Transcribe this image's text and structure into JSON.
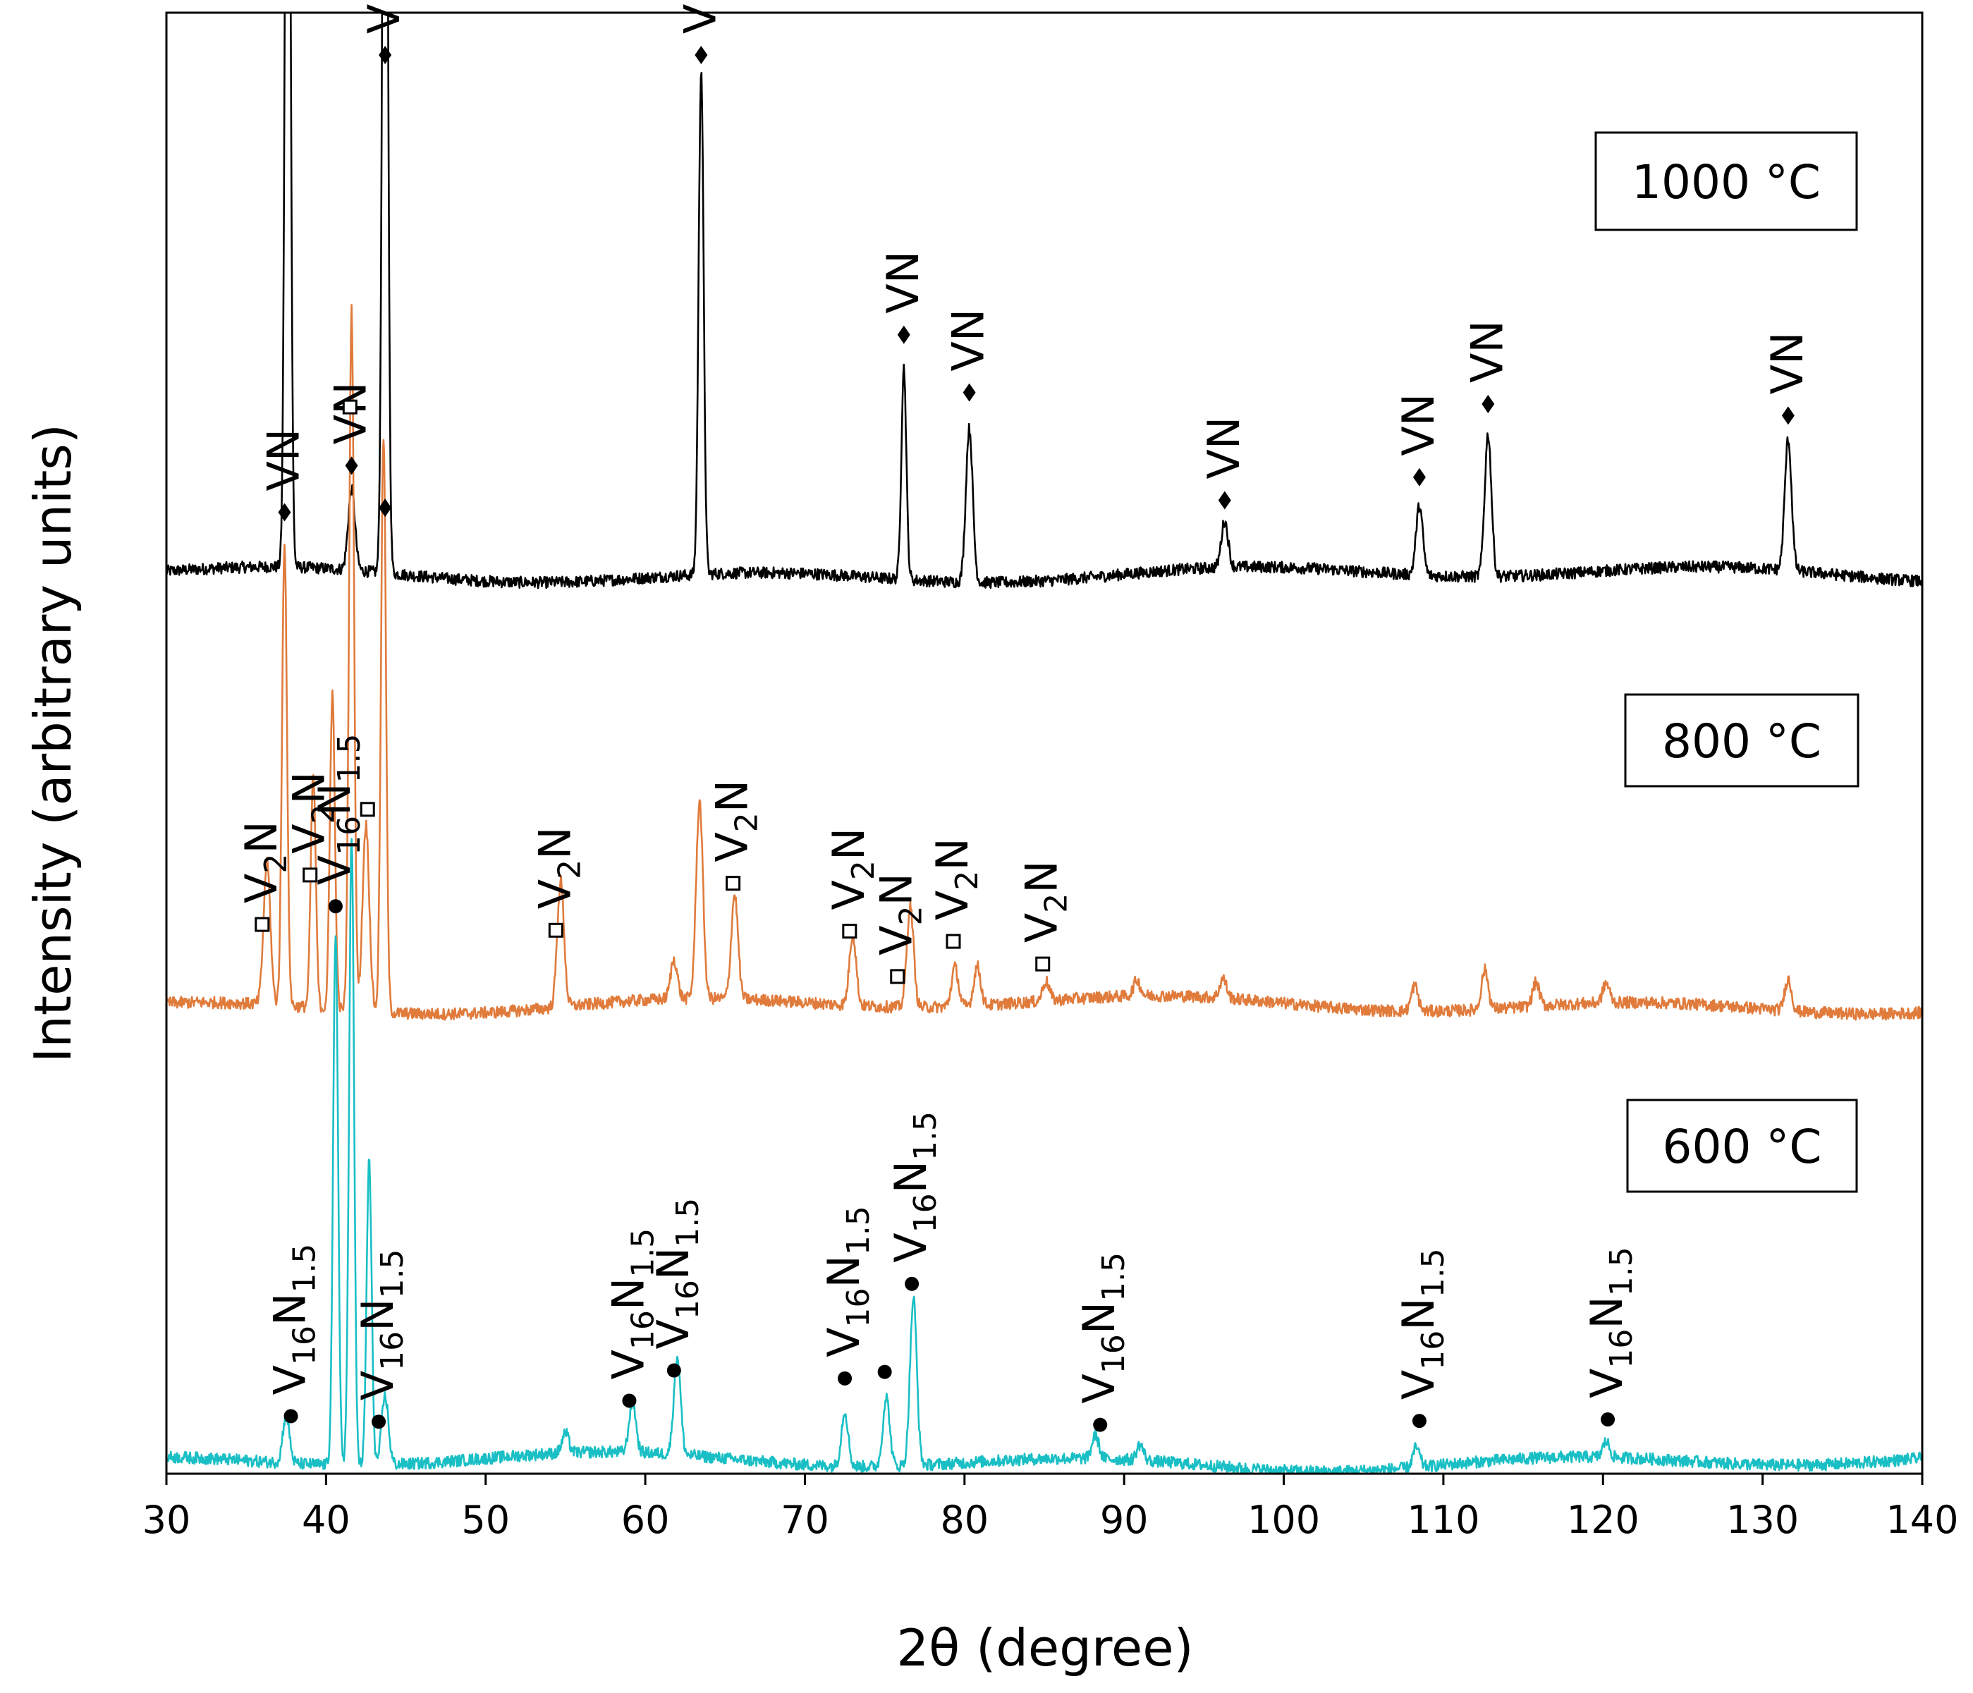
{
  "chart_data": {
    "type": "line",
    "title": "",
    "xlabel": "2θ (degree)",
    "ylabel": "Intensity (arbitrary units)",
    "xlim": [
      30,
      140
    ],
    "xticks": [
      30,
      40,
      50,
      60,
      70,
      80,
      90,
      100,
      110,
      120,
      130,
      140
    ],
    "y_ticks_shown": false,
    "legend_position": "none (temperature labels in boxes at right of each trace)",
    "series": [
      {
        "name": "1000 °C",
        "label": "1000 °C",
        "color": "#000000",
        "baseline_level": 0.235,
        "peaks": [
          [
            37.6,
            6.0
          ],
          [
            41.6,
            0.42
          ],
          [
            43.7,
            6.0
          ],
          [
            63.5,
            2.63
          ],
          [
            76.2,
            1.1
          ],
          [
            80.3,
            0.8
          ],
          [
            96.3,
            0.24
          ],
          [
            108.5,
            0.36
          ],
          [
            112.8,
            0.74
          ],
          [
            131.6,
            0.68
          ]
        ],
        "annotations": [
          {
            "x": 41.6,
            "marker": "diamond",
            "text": "VN"
          },
          {
            "x": 43.7,
            "marker": "diamond",
            "text": "VN"
          },
          {
            "x": 63.5,
            "marker": "diamond",
            "text": "VN"
          },
          {
            "x": 76.2,
            "marker": "diamond",
            "text": "VN"
          },
          {
            "x": 80.3,
            "marker": "diamond",
            "text": "VN"
          },
          {
            "x": 96.3,
            "marker": "diamond",
            "text": "VN"
          },
          {
            "x": 108.5,
            "marker": "diamond",
            "text": "VN"
          },
          {
            "x": 112.8,
            "marker": "diamond",
            "text": "VN"
          },
          {
            "x": 131.6,
            "marker": "diamond",
            "text": "VN"
          }
        ]
      },
      {
        "name": "800 °C",
        "label": "800 °C",
        "color": "#e07b3c",
        "baseline_level": 0.245,
        "peaks": [
          [
            36.3,
            0.72
          ],
          [
            37.4,
            2.36
          ],
          [
            39.2,
            1.18
          ],
          [
            40.4,
            1.61
          ],
          [
            41.6,
            3.56
          ],
          [
            42.5,
            0.95
          ],
          [
            43.6,
            2.93
          ],
          [
            54.7,
            0.64
          ],
          [
            61.8,
            0.2
          ],
          [
            63.4,
            1.0
          ],
          [
            65.6,
            0.53
          ],
          [
            73.0,
            0.36
          ],
          [
            76.6,
            0.51
          ],
          [
            79.4,
            0.2
          ],
          [
            80.8,
            0.2
          ],
          [
            85.1,
            0.1
          ],
          [
            90.8,
            0.08
          ],
          [
            96.2,
            0.1
          ],
          [
            108.2,
            0.13
          ],
          [
            112.6,
            0.2
          ],
          [
            115.8,
            0.12
          ],
          [
            120.2,
            0.1
          ],
          [
            131.6,
            0.16
          ]
        ],
        "annotations": [
          {
            "x": 36.0,
            "marker": "square",
            "text": "V2N",
            "base": "V",
            "sub": "2",
            "tail": "N"
          },
          {
            "x": 37.4,
            "marker": "diamond",
            "text": "VN"
          },
          {
            "x": 39.0,
            "marker": "square",
            "text": "V2N",
            "base": "V",
            "sub": "2",
            "tail": "N"
          },
          {
            "x": 41.5,
            "marker": "square",
            "text": ""
          },
          {
            "x": 42.6,
            "marker": "square",
            "text": ""
          },
          {
            "x": 43.7,
            "marker": "diamond",
            "text": ""
          },
          {
            "x": 54.4,
            "marker": "square",
            "text": "V2N",
            "base": "V",
            "sub": "2",
            "tail": "N"
          },
          {
            "x": 65.5,
            "marker": "square",
            "text": "V2N",
            "base": "V",
            "sub": "2",
            "tail": "N"
          },
          {
            "x": 72.8,
            "marker": "square",
            "text": "V2N",
            "base": "V",
            "sub": "2",
            "tail": "N"
          },
          {
            "x": 75.8,
            "marker": "square",
            "text": "V2N",
            "base": "V",
            "sub": "2",
            "tail": "N"
          },
          {
            "x": 79.3,
            "marker": "square",
            "text": "V2N",
            "base": "V",
            "sub": "2",
            "tail": "N"
          },
          {
            "x": 84.9,
            "marker": "square",
            "text": "V2N",
            "base": "V",
            "sub": "2",
            "tail": "N"
          }
        ]
      },
      {
        "name": "600 °C",
        "label": "600 °C",
        "color": "#19bfc4",
        "baseline_level": 0.245,
        "peaks": [
          [
            37.5,
            0.24
          ],
          [
            40.6,
            2.68
          ],
          [
            41.6,
            3.2
          ],
          [
            42.7,
            1.55
          ],
          [
            43.7,
            0.35
          ],
          [
            55.0,
            0.1
          ],
          [
            59.2,
            0.26
          ],
          [
            62.0,
            0.5
          ],
          [
            72.5,
            0.28
          ],
          [
            75.1,
            0.35
          ],
          [
            76.8,
            0.85
          ],
          [
            88.2,
            0.12
          ],
          [
            91.0,
            0.08
          ],
          [
            108.3,
            0.1
          ],
          [
            120.2,
            0.08
          ]
        ],
        "annotations": [
          {
            "x": 37.8,
            "marker": "circle",
            "text": "V16N1.5",
            "base": "V",
            "sub": "16",
            "tail": "N",
            "sub2": "1.5"
          },
          {
            "x": 40.6,
            "marker": "circle",
            "text": "V16N1.5",
            "base": "V",
            "sub": "16",
            "tail": "N",
            "sub2": "1.5"
          },
          {
            "x": 43.3,
            "marker": "circle",
            "text": "V16N1.5",
            "base": "V",
            "sub": "16",
            "tail": "N",
            "sub2": "1.5"
          },
          {
            "x": 59.0,
            "marker": "circle",
            "text": "V16N1.5",
            "base": "V",
            "sub": "16",
            "tail": "N",
            "sub2": "1.5"
          },
          {
            "x": 61.8,
            "marker": "circle",
            "text": "V16N1.5",
            "base": "V",
            "sub": "16",
            "tail": "N",
            "sub2": "1.5"
          },
          {
            "x": 72.5,
            "marker": "circle",
            "text": "V16N1.5",
            "base": "V",
            "sub": "16",
            "tail": "N",
            "sub2": "1.5"
          },
          {
            "x": 75.0,
            "marker": "circle",
            "text": ""
          },
          {
            "x": 76.7,
            "marker": "circle",
            "text": "V16N1.5",
            "base": "V",
            "sub": "16",
            "tail": "N",
            "sub2": "1.5"
          },
          {
            "x": 88.5,
            "marker": "circle",
            "text": "V16N1.5",
            "base": "V",
            "sub": "16",
            "tail": "N",
            "sub2": "1.5"
          },
          {
            "x": 108.5,
            "marker": "circle",
            "text": "V16N1.5",
            "base": "V",
            "sub": "16",
            "tail": "N",
            "sub2": "1.5"
          },
          {
            "x": 120.3,
            "marker": "circle",
            "text": "V16N1.5",
            "base": "V",
            "sub": "16",
            "tail": "N",
            "sub2": "1.5"
          }
        ]
      }
    ]
  }
}
